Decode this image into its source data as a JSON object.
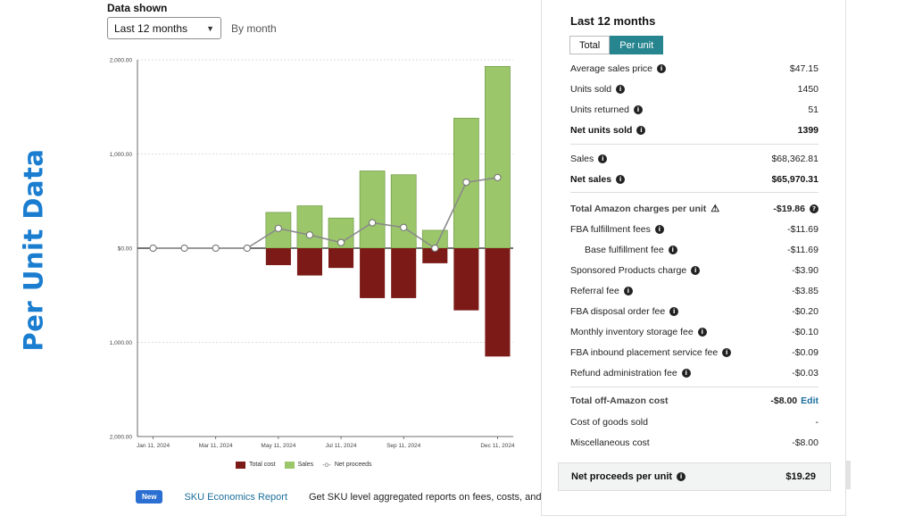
{
  "side_title": "Per Unit Data",
  "controls": {
    "data_shown_label": "Data shown",
    "range_value": "Last 12 months",
    "by_month": "By month"
  },
  "colors": {
    "total_cost": "#7b1a17",
    "sales": "#9cc66a",
    "net": "#8a8a8a",
    "accent": "#26858f",
    "title": "#1a7dd0"
  },
  "chart_data": {
    "type": "bar",
    "x_ticks": [
      "Jan 11, 2024",
      "Mar 11, 2024",
      "May 11, 2024",
      "Jul 11, 2024",
      "Sep 11, 2024",
      "Dec 11, 2024"
    ],
    "y_ticks": [
      "2,000.00",
      "1,000.00",
      "$0.00",
      "1,000.00",
      "2,000.00"
    ],
    "ylim": [
      -2000,
      2000
    ],
    "points": 12,
    "series": [
      {
        "name": "Total cost",
        "values": [
          0,
          0,
          0,
          0,
          -180,
          -290,
          -210,
          -530,
          -530,
          -160,
          -660,
          -1150
        ]
      },
      {
        "name": "Sales",
        "values": [
          0,
          0,
          0,
          0,
          380,
          450,
          320,
          820,
          780,
          190,
          1380,
          1930
        ]
      },
      {
        "name": "Net proceeds",
        "values": [
          0,
          0,
          0,
          0,
          210,
          140,
          60,
          270,
          220,
          0,
          700,
          750
        ]
      }
    ],
    "legend": [
      "Total cost",
      "Sales",
      "Net proceeds"
    ]
  },
  "footer": {
    "badge": "New",
    "link": "SKU Economics Report",
    "desc": "Get SKU level aggregated reports on fees, costs, and"
  },
  "panel": {
    "title": "Last 12 months",
    "toggle": [
      "Total",
      "Per unit"
    ],
    "rows": [
      {
        "label": "Average sales price",
        "value": "$47.15"
      },
      {
        "label": "Units sold",
        "value": "1450"
      },
      {
        "label": "Units returned",
        "value": "51"
      },
      {
        "label": "Net units sold",
        "value": "1399"
      },
      {
        "label": "Sales",
        "value": "$68,362.81"
      },
      {
        "label": "Net sales",
        "value": "$65,970.31"
      },
      {
        "label": "Total Amazon charges per unit",
        "value": "-$19.86"
      },
      {
        "label": "FBA fulfillment fees",
        "value": "-$11.69"
      },
      {
        "label": "Base fulfillment fee",
        "value": "-$11.69"
      },
      {
        "label": "Sponsored Products charge",
        "value": "-$3.90"
      },
      {
        "label": "Referral fee",
        "value": "-$3.85"
      },
      {
        "label": "FBA disposal order fee",
        "value": "-$0.20"
      },
      {
        "label": "Monthly inventory storage fee",
        "value": "-$0.10"
      },
      {
        "label": "FBA inbound placement service fee",
        "value": "-$0.09"
      },
      {
        "label": "Refund administration fee",
        "value": "-$0.03"
      },
      {
        "label": "Total off-Amazon cost",
        "value": "-$8.00",
        "action": "Edit"
      },
      {
        "label": "Cost of goods sold",
        "value": "-"
      },
      {
        "label": "Miscellaneous cost",
        "value": "-$8.00"
      }
    ],
    "net_label": "Net proceeds per unit",
    "net_value": "$19.29"
  }
}
